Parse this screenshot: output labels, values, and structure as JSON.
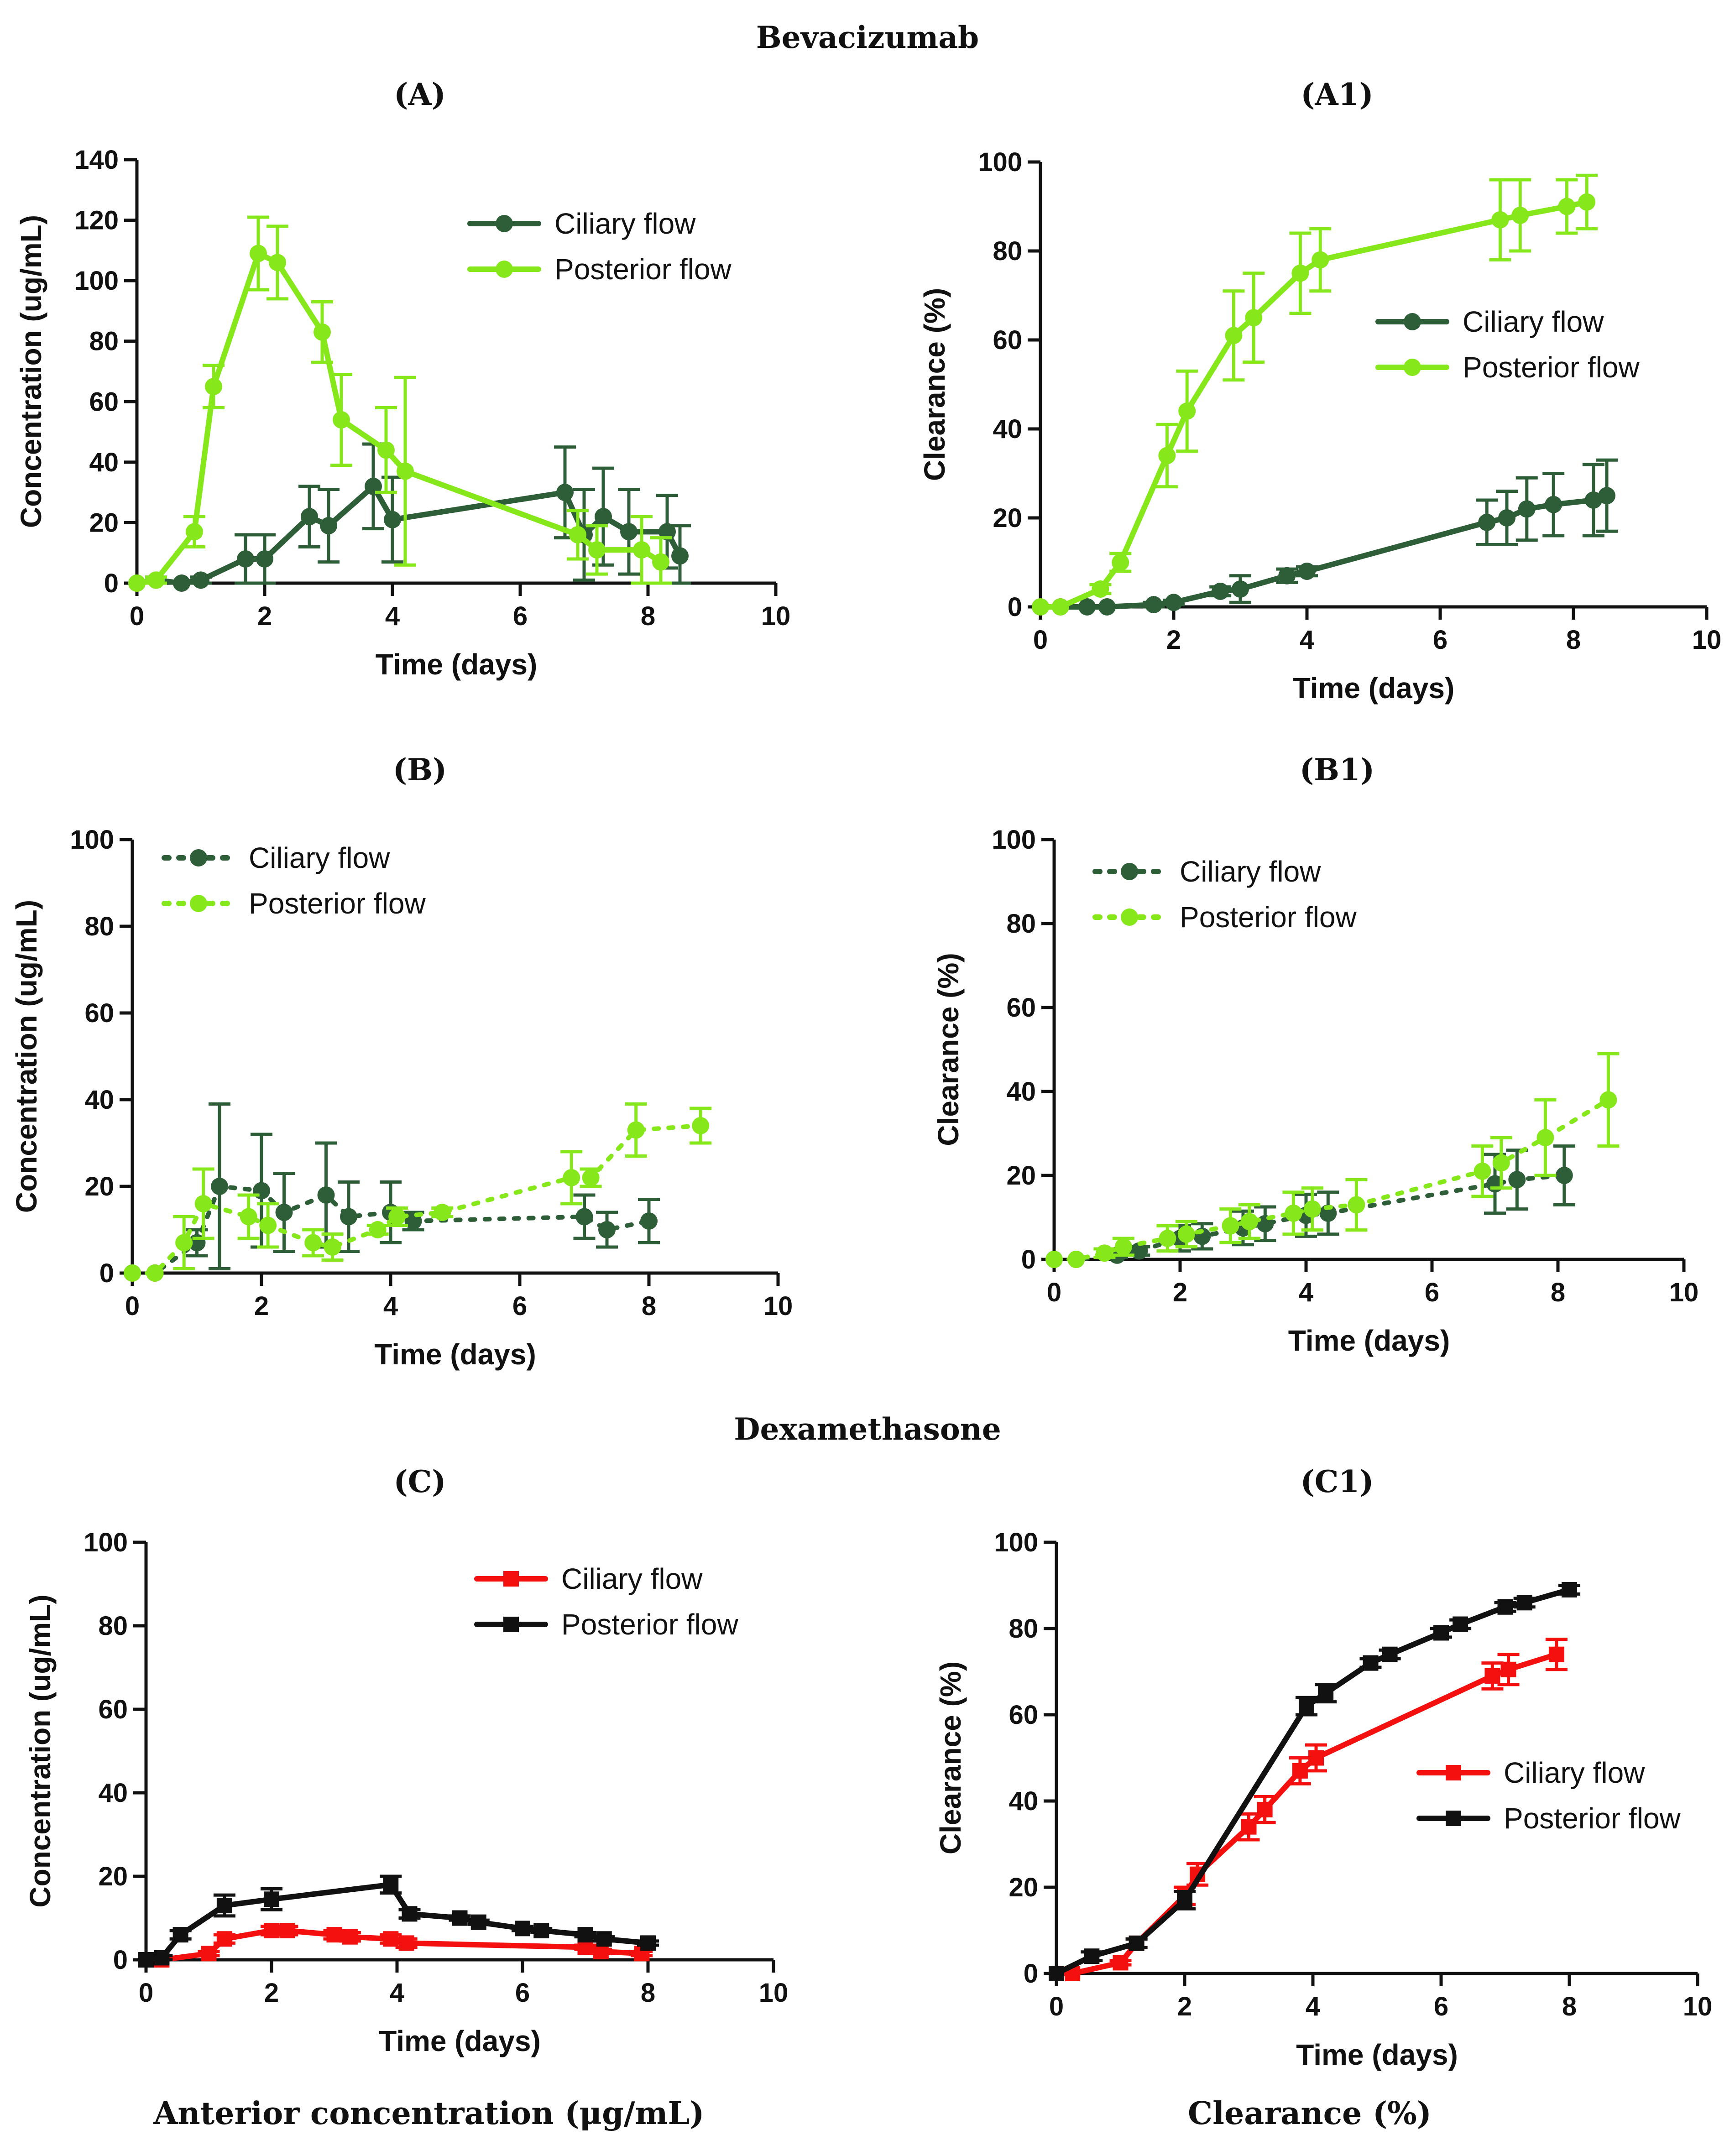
{
  "figure": {
    "section_top": "Bevacizumab",
    "section_mid": "Dexamethasone",
    "footer_left": "Anterior concentration (μg/mL)",
    "footer_right": "Clearance (%)"
  },
  "colors": {
    "dark_green": "#2e5e38",
    "light_green": "#86e81a",
    "red": "#f51010",
    "black": "#111111"
  },
  "chart_data": [
    {
      "id": "A",
      "panel_label": "(A)",
      "type": "line",
      "xlabel": "Time (days)",
      "ylabel": "Concentration (ug/mL)",
      "xlim": [
        0,
        10
      ],
      "ylim": [
        0,
        140
      ],
      "xticks": [
        0,
        2,
        4,
        6,
        8,
        10
      ],
      "yticks": [
        0,
        20,
        40,
        60,
        80,
        100,
        120,
        140
      ],
      "legend_position": "top-right",
      "series": [
        {
          "name": "Ciliary flow",
          "color": "#2e5e38",
          "dashed": false,
          "marker": "circle",
          "x": [
            0,
            0.3,
            0.7,
            1.0,
            1.7,
            2.0,
            2.7,
            3.0,
            3.7,
            4.0,
            6.7,
            7.0,
            7.3,
            7.7,
            8.3,
            8.5
          ],
          "y": [
            0,
            1,
            0,
            1,
            8,
            8,
            22,
            19,
            32,
            21,
            30,
            16,
            22,
            17,
            17,
            9
          ],
          "err": [
            0,
            1,
            0,
            1,
            8,
            8,
            10,
            12,
            14,
            14,
            15,
            15,
            16,
            14,
            12,
            10
          ]
        },
        {
          "name": "Posterior flow",
          "color": "#86e81a",
          "dashed": false,
          "marker": "circle",
          "x": [
            0,
            0.3,
            0.9,
            1.2,
            1.9,
            2.2,
            2.9,
            3.2,
            3.9,
            4.2,
            6.9,
            7.2,
            7.9,
            8.2
          ],
          "y": [
            0,
            1,
            17,
            65,
            109,
            106,
            83,
            54,
            44,
            37,
            16,
            11,
            11,
            7
          ],
          "err": [
            0,
            1,
            5,
            7,
            12,
            12,
            10,
            15,
            14,
            31,
            8,
            8,
            11,
            8
          ]
        }
      ]
    },
    {
      "id": "A1",
      "panel_label": "(A1)",
      "type": "line",
      "xlabel": "Time (days)",
      "ylabel": "Clearance (%)",
      "xlim": [
        0,
        10
      ],
      "ylim": [
        0,
        100
      ],
      "xticks": [
        0,
        2,
        4,
        6,
        8,
        10
      ],
      "yticks": [
        0,
        20,
        40,
        60,
        80,
        100
      ],
      "legend_position": "center-right",
      "series": [
        {
          "name": "Ciliary flow",
          "color": "#2e5e38",
          "dashed": false,
          "marker": "circle",
          "x": [
            0,
            0.3,
            0.7,
            1.0,
            1.7,
            2.0,
            2.7,
            3.0,
            3.7,
            4.0,
            6.7,
            7.0,
            7.3,
            7.7,
            8.3,
            8.5
          ],
          "y": [
            0,
            0,
            0,
            0,
            0.5,
            1,
            3.5,
            4,
            7,
            8,
            19,
            20,
            22,
            23,
            24,
            25
          ],
          "err": [
            0,
            0,
            0,
            0,
            0.5,
            0.5,
            1,
            3,
            1.5,
            1,
            5,
            6,
            7,
            7,
            8,
            8
          ]
        },
        {
          "name": "Posterior flow",
          "color": "#86e81a",
          "dashed": false,
          "marker": "circle",
          "x": [
            0,
            0.3,
            0.9,
            1.2,
            1.9,
            2.2,
            2.9,
            3.2,
            3.9,
            4.2,
            6.9,
            7.2,
            7.9,
            8.2
          ],
          "y": [
            0,
            0,
            4,
            10,
            34,
            44,
            61,
            65,
            75,
            78,
            87,
            88,
            90,
            91
          ],
          "err": [
            0,
            0,
            1,
            2,
            7,
            9,
            10,
            10,
            9,
            7,
            9,
            8,
            6,
            6
          ]
        }
      ]
    },
    {
      "id": "B",
      "panel_label": "(B)",
      "type": "line",
      "xlabel": "Time (days)",
      "ylabel": "Concentration (ug/mL)",
      "xlim": [
        0,
        10
      ],
      "ylim": [
        0,
        100
      ],
      "xticks": [
        0,
        2,
        4,
        6,
        8,
        10
      ],
      "yticks": [
        0,
        20,
        40,
        60,
        80,
        100
      ],
      "legend_position": "top-left",
      "series": [
        {
          "name": "Ciliary flow",
          "color": "#2e5e38",
          "dashed": true,
          "marker": "circle",
          "x": [
            0,
            0.35,
            1.0,
            1.35,
            2.0,
            2.35,
            3.0,
            3.35,
            4.0,
            4.35,
            7.0,
            7.35,
            8.0
          ],
          "y": [
            0,
            0,
            7,
            20,
            19,
            14,
            18,
            13,
            14,
            12,
            13,
            10,
            12
          ],
          "err": [
            0,
            0,
            3,
            19,
            13,
            9,
            12,
            8,
            7,
            2,
            5,
            4,
            5
          ]
        },
        {
          "name": "Posterior flow",
          "color": "#86e81a",
          "dashed": true,
          "marker": "circle",
          "x": [
            0,
            0.35,
            0.8,
            1.1,
            1.8,
            2.1,
            2.8,
            3.1,
            3.8,
            4.1,
            4.8,
            6.8,
            7.1,
            7.8,
            8.8
          ],
          "y": [
            0,
            0,
            7,
            16,
            13,
            11,
            7,
            6,
            10,
            13,
            14,
            22,
            22,
            33,
            34
          ],
          "err": [
            0,
            0,
            6,
            8,
            5,
            5,
            3,
            3,
            1,
            2,
            1,
            6,
            2,
            6,
            4
          ]
        }
      ]
    },
    {
      "id": "B1",
      "panel_label": "(B1)",
      "type": "line",
      "xlabel": "Time (days)",
      "ylabel": "Clearance (%)",
      "xlim": [
        0,
        10
      ],
      "ylim": [
        0,
        100
      ],
      "xticks": [
        0,
        2,
        4,
        6,
        8,
        10
      ],
      "yticks": [
        0,
        20,
        40,
        60,
        80,
        100
      ],
      "legend_position": "top-left",
      "series": [
        {
          "name": "Ciliary flow",
          "color": "#2e5e38",
          "dashed": true,
          "marker": "circle",
          "x": [
            0,
            0.35,
            1.0,
            1.35,
            2.0,
            2.35,
            3.0,
            3.35,
            4.0,
            4.35,
            7.0,
            7.35,
            8.1
          ],
          "y": [
            0,
            0,
            1,
            2,
            5,
            5.5,
            7.5,
            8.5,
            10.5,
            11,
            18,
            19,
            20
          ],
          "err": [
            0,
            0,
            0.5,
            1,
            3,
            3,
            4,
            4,
            5,
            5,
            7,
            7,
            7
          ]
        },
        {
          "name": "Posterior flow",
          "color": "#86e81a",
          "dashed": true,
          "marker": "circle",
          "x": [
            0,
            0.35,
            0.8,
            1.1,
            1.8,
            2.1,
            2.8,
            3.1,
            3.8,
            4.1,
            4.8,
            6.8,
            7.1,
            7.8,
            8.8
          ],
          "y": [
            0,
            0,
            1.5,
            3,
            5,
            6,
            8,
            9,
            11,
            12,
            13,
            21,
            23,
            29,
            38
          ],
          "err": [
            0,
            0,
            1,
            2,
            3,
            3,
            4,
            4,
            5,
            5,
            6,
            6,
            6,
            9,
            11
          ]
        }
      ]
    },
    {
      "id": "C",
      "panel_label": "(C)",
      "type": "line",
      "xlabel": "Time (days)",
      "ylabel": "Concentration (ug/mL)",
      "xlim": [
        0,
        10
      ],
      "ylim": [
        0,
        100
      ],
      "xticks": [
        0,
        2,
        4,
        6,
        8,
        10
      ],
      "yticks": [
        0,
        20,
        40,
        60,
        80,
        100
      ],
      "legend_position": "top-right",
      "series": [
        {
          "name": "Ciliary flow",
          "color": "#f51010",
          "dashed": false,
          "marker": "square",
          "x": [
            0,
            0.25,
            1.0,
            1.25,
            2.0,
            2.25,
            3.0,
            3.25,
            3.9,
            4.15,
            7.0,
            7.25,
            7.9
          ],
          "y": [
            0,
            0,
            1.5,
            5,
            7,
            7,
            6,
            5.5,
            5,
            4,
            3,
            2,
            1.5
          ],
          "err": [
            0,
            0,
            0.5,
            1,
            1,
            1,
            1,
            1,
            1,
            1,
            0.5,
            0.5,
            0.5
          ]
        },
        {
          "name": "Posterior flow",
          "color": "#111111",
          "dashed": false,
          "marker": "square",
          "x": [
            0,
            0.25,
            0.55,
            1.25,
            2.0,
            3.9,
            4.2,
            5.0,
            5.3,
            6.0,
            6.3,
            7.0,
            7.3,
            8.0
          ],
          "y": [
            0,
            0.5,
            6,
            13,
            14.5,
            18,
            11,
            10,
            9,
            7.5,
            7,
            6,
            5,
            4
          ],
          "err": [
            0,
            0.5,
            1,
            2.5,
            2.5,
            2,
            1,
            0.5,
            0.5,
            0.5,
            0.5,
            0.5,
            0.5,
            0.5
          ]
        }
      ]
    },
    {
      "id": "C1",
      "panel_label": "(C1)",
      "type": "line",
      "xlabel": "Time (days)",
      "ylabel": "Clearance (%)",
      "xlim": [
        0,
        10
      ],
      "ylim": [
        0,
        100
      ],
      "xticks": [
        0,
        2,
        4,
        6,
        8,
        10
      ],
      "yticks": [
        0,
        20,
        40,
        60,
        80,
        100
      ],
      "legend_position": "center-right",
      "series": [
        {
          "name": "Ciliary flow",
          "color": "#f51010",
          "dashed": false,
          "marker": "square",
          "x": [
            0,
            0.25,
            1.0,
            1.25,
            2.0,
            2.2,
            3.0,
            3.25,
            3.8,
            4.05,
            6.8,
            7.05,
            7.8
          ],
          "y": [
            0,
            0,
            2.5,
            7,
            18,
            23,
            34,
            38,
            47,
            50,
            69,
            70.5,
            74
          ],
          "err": [
            0,
            0,
            0.5,
            1,
            2,
            2.5,
            3,
            3,
            3,
            3,
            3,
            3.5,
            3.5
          ]
        },
        {
          "name": "Posterior flow",
          "color": "#111111",
          "dashed": false,
          "marker": "square",
          "x": [
            0,
            0.55,
            1.25,
            2.0,
            3.9,
            4.2,
            4.9,
            5.2,
            6.0,
            6.3,
            7.0,
            7.3,
            8.0
          ],
          "y": [
            0,
            4,
            7,
            17,
            62,
            65,
            72,
            74,
            79,
            81,
            85,
            86,
            89
          ],
          "err": [
            0,
            1,
            1,
            2,
            2,
            2,
            1,
            1,
            1,
            1,
            1,
            1,
            1
          ]
        }
      ]
    }
  ]
}
